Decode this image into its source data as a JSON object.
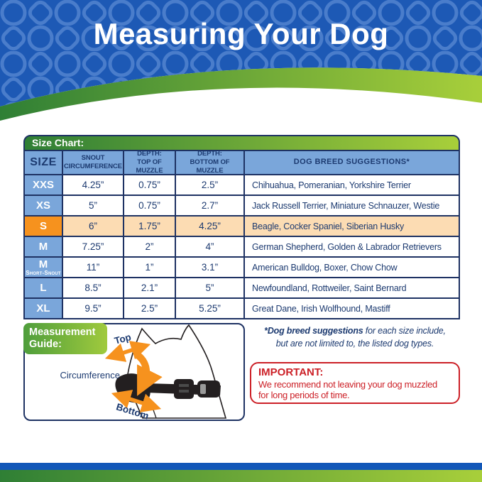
{
  "header": {
    "title": "Measuring Your Dog"
  },
  "size_chart": {
    "title": "Size Chart:",
    "columns": [
      "SIZE",
      "SNOUT\nCIRCUMFERENCE",
      "DEPTH:\nTOP OF MUZZLE",
      "DEPTH:\nBOTTOM OF MUZZLE",
      "DOG BREED SUGGESTIONS*"
    ],
    "rows": [
      {
        "size": "XXS",
        "size_sub": "",
        "snout_circumference": "4.25”",
        "depth_top": "0.75”",
        "depth_bottom": "2.5”",
        "breeds": "Chihuahua, Pomeranian, Yorkshire Terrier",
        "highlighted": false
      },
      {
        "size": "XS",
        "size_sub": "",
        "snout_circumference": "5”",
        "depth_top": "0.75”",
        "depth_bottom": "2.7”",
        "breeds": "Jack Russell Terrier, Miniature Schnauzer, Westie",
        "highlighted": false
      },
      {
        "size": "S",
        "size_sub": "",
        "snout_circumference": "6”",
        "depth_top": "1.75”",
        "depth_bottom": "4.25”",
        "breeds": "Beagle, Cocker Spaniel, Siberian Husky",
        "highlighted": true
      },
      {
        "size": "M",
        "size_sub": "",
        "snout_circumference": "7.25”",
        "depth_top": "2”",
        "depth_bottom": "4”",
        "breeds": "German Shepherd, Golden & Labrador Retrievers",
        "highlighted": false
      },
      {
        "size": "M",
        "size_sub": "Short-Snout",
        "snout_circumference": "11”",
        "depth_top": "1”",
        "depth_bottom": "3.1”",
        "breeds": "American Bulldog, Boxer, Chow Chow",
        "highlighted": false
      },
      {
        "size": "L",
        "size_sub": "",
        "snout_circumference": "8.5”",
        "depth_top": "2.1”",
        "depth_bottom": "5”",
        "breeds": "Newfoundland, Rottweiler, Saint Bernard",
        "highlighted": false
      },
      {
        "size": "XL",
        "size_sub": "",
        "snout_circumference": "9.5”",
        "depth_top": "2.5”",
        "depth_bottom": "5.25”",
        "breeds": "Great Dane, Irish Wolfhound, Mastiff",
        "highlighted": false
      }
    ]
  },
  "measurement_guide": {
    "label": "Measurement\nGuide:",
    "top_label": "Top",
    "circumference_label": "Circumference",
    "bottom_label": "Bottom"
  },
  "footnote": {
    "bold": "*Dog breed suggestions",
    "rest": " for each size include,",
    "line2": "but are not limited to, the listed dog types."
  },
  "important": {
    "title": "IMPORTANT:",
    "line1": "We recommend not leaving your dog muzzled",
    "line2": "for long periods of time."
  },
  "colors": {
    "banner_blue": "#1d59b5",
    "pattern_blue": "#4a7dcb",
    "green_dark": "#2f7f35",
    "green_light": "#a8cf3a",
    "label_blue": "#7aa6da",
    "highlight_orange": "#f6921e",
    "highlight_peach": "#fcdcb3",
    "navy": "#1e3263",
    "red": "#cc2027"
  }
}
